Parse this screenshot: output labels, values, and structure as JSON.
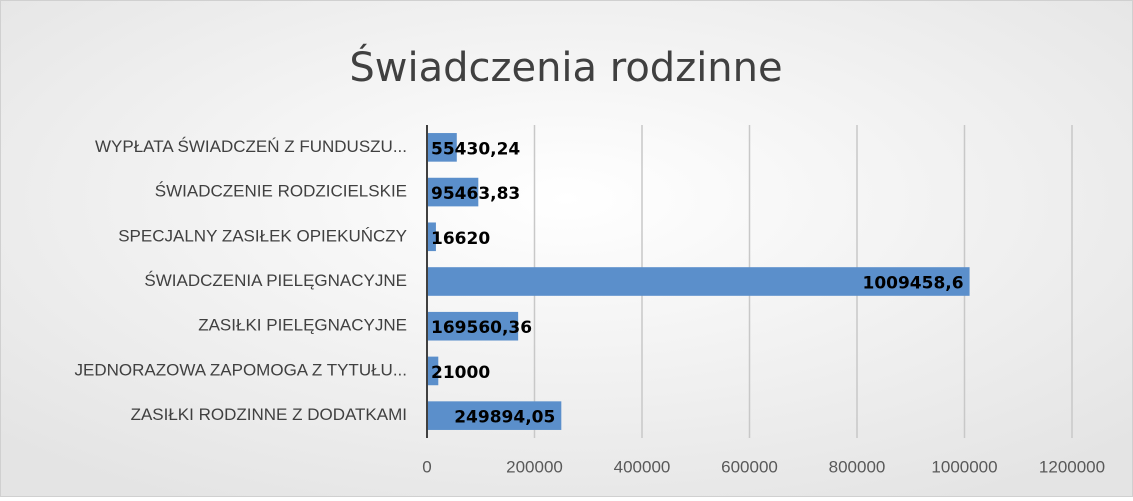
{
  "chart_data": {
    "type": "bar",
    "orientation": "horizontal",
    "title": "Świadczenia rodzinne",
    "categories": [
      "WYPŁATA ŚWIADCZEŃ Z FUNDUSZU...",
      "ŚWIADCZENIE RODZICIELSKIE",
      "SPECJALNY ZASIŁEK OPIEKUŃCZY",
      "ŚWIADCZENIA PIELĘGNACYJNE",
      "ZASIŁKI PIELĘGNACYJNE",
      "JEDNORAZOWA ZAPOMOGA Z TYTUŁU...",
      "ZASIŁKI RODZINNE Z DODATKAMI"
    ],
    "values": [
      55430.24,
      95463.83,
      16620,
      1009458.6,
      169560.36,
      21000,
      249894.05
    ],
    "value_labels": [
      "55430,24",
      "95463,83",
      "16620",
      "1009458,6",
      "169560,36",
      "21000",
      "249894,05"
    ],
    "color": "#5b8fcb",
    "xlim": [
      0,
      1200000
    ],
    "xticks": [
      0,
      200000,
      400000,
      600000,
      800000,
      1000000,
      1200000
    ],
    "grid": true
  }
}
